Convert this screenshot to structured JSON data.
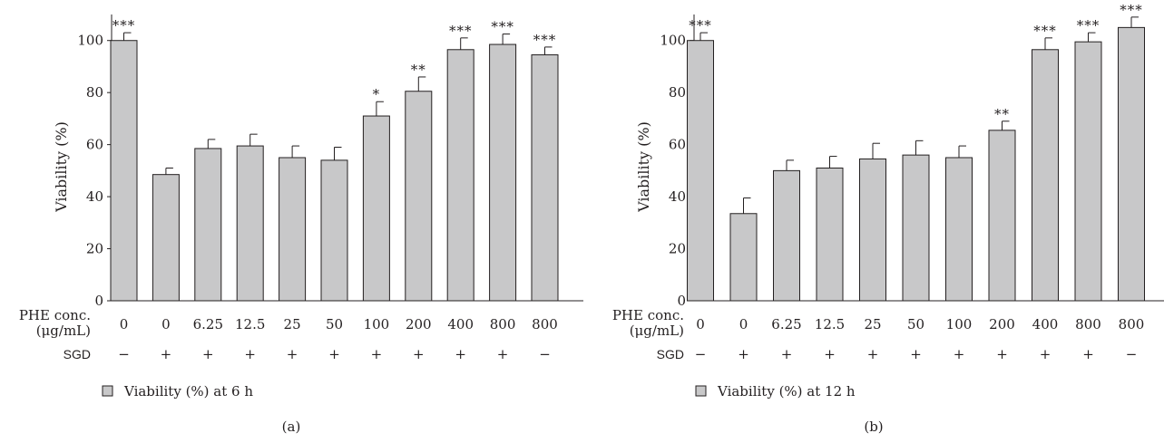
{
  "colors": {
    "bar_fill": "#c8c8c9",
    "bar_stroke": "#231f20",
    "axis": "#231f20",
    "text": "#231f20"
  },
  "chart_data": [
    {
      "type": "bar",
      "panel_label": "(a)",
      "ylabel": "Viability (%)",
      "ylim": [
        0,
        110
      ],
      "yticks": [
        0,
        20,
        40,
        60,
        80,
        100
      ],
      "row_labels": {
        "phe_line1": "PHE conc.",
        "phe_line2": "(μg/mL)",
        "sgd": "SGD"
      },
      "categories": [
        "0",
        "0",
        "6.25",
        "12.5",
        "25",
        "50",
        "100",
        "200",
        "400",
        "800",
        "800"
      ],
      "sgd": [
        "−",
        "+",
        "+",
        "+",
        "+",
        "+",
        "+",
        "+",
        "+",
        "+",
        "−"
      ],
      "series": [
        {
          "name": "Viability (%) at 6 h",
          "values": [
            100,
            48.5,
            58.5,
            59.5,
            55,
            54,
            71,
            80.5,
            96.5,
            98.5,
            94.5
          ],
          "errors": [
            3,
            2.5,
            3.5,
            4.5,
            4.5,
            5,
            5.5,
            5.5,
            4.5,
            4,
            3
          ],
          "significance": [
            "***",
            "",
            "",
            "",
            "",
            "",
            "*",
            "**",
            "***",
            "***",
            "***"
          ]
        }
      ],
      "legend_position": "bottom-left",
      "grid": false
    },
    {
      "type": "bar",
      "panel_label": "(b)",
      "ylabel": "Viability (%)",
      "ylim": [
        0,
        110
      ],
      "yticks": [
        0,
        20,
        40,
        60,
        80,
        100
      ],
      "row_labels": {
        "phe_line1": "PHE conc.",
        "phe_line2": "(μg/mL)",
        "sgd": "SGD"
      },
      "categories": [
        "0",
        "0",
        "6.25",
        "12.5",
        "25",
        "50",
        "100",
        "200",
        "400",
        "800",
        "800"
      ],
      "sgd": [
        "−",
        "+",
        "+",
        "+",
        "+",
        "+",
        "+",
        "+",
        "+",
        "+",
        "−"
      ],
      "series": [
        {
          "name": "Viability (%) at 12 h",
          "values": [
            100,
            33.5,
            50,
            51,
            54.5,
            56,
            55,
            65.5,
            96.5,
            99.5,
            105
          ],
          "errors": [
            3,
            6,
            4,
            4.5,
            6,
            5.5,
            4.5,
            3.5,
            4.5,
            3.5,
            4
          ],
          "significance": [
            "***",
            "",
            "",
            "",
            "",
            "",
            "",
            "**",
            "***",
            "***",
            "***"
          ]
        }
      ],
      "legend_position": "bottom-left",
      "grid": false
    }
  ]
}
